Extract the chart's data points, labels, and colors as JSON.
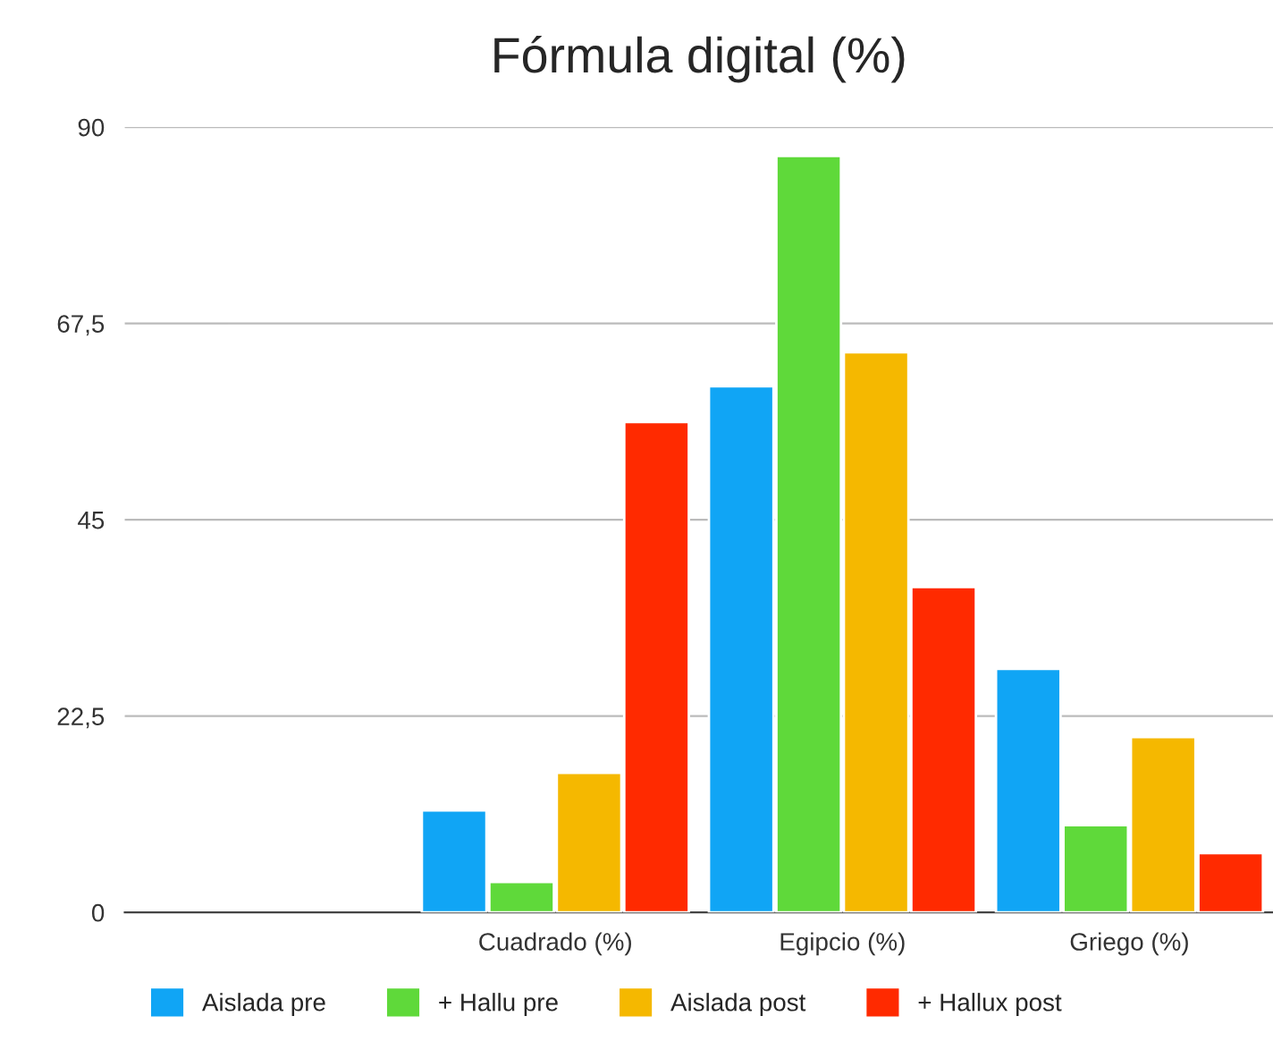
{
  "chart_data": {
    "type": "bar",
    "title": "Fórmula digital (%)",
    "categories": [
      null,
      "Cuadrado (%)",
      "Egipcio (%)",
      "Griego (%)"
    ],
    "series": [
      {
        "name": "Aislada pre",
        "color": "#10a5f5",
        "values": [
          null,
          11.7,
          60.3,
          27.9
        ]
      },
      {
        "name": "+ Hallu pre",
        "color": "#5fd93a",
        "values": [
          null,
          3.5,
          86.7,
          10
        ]
      },
      {
        "name": "Aislada post",
        "color": "#f5b800",
        "values": [
          null,
          16,
          64.2,
          20.1
        ]
      },
      {
        "name": "+ Hallux post",
        "color": "#ff2a00",
        "values": [
          null,
          56.2,
          37.3,
          6.8
        ]
      }
    ],
    "ylim": [
      0,
      90
    ],
    "yticks": [
      0,
      {
        "value": 22.5,
        "label": "22,5"
      },
      45,
      {
        "value": 67.5,
        "label": "67,5"
      },
      90
    ],
    "grid": "y",
    "legend": "bottom"
  }
}
